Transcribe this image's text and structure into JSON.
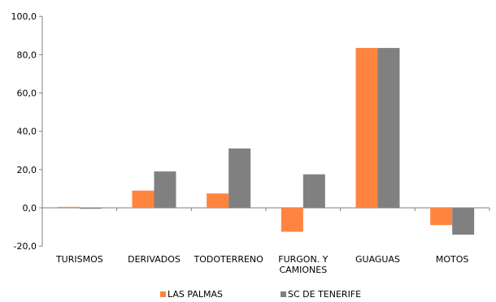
{
  "chart_data": {
    "type": "bar",
    "categories": [
      [
        "TURISMOS"
      ],
      [
        "DERIVADOS"
      ],
      [
        "TODOTERRENO"
      ],
      [
        "FURGON. Y",
        "CAMIONES"
      ],
      [
        "GUAGUAS"
      ],
      [
        "MOTOS"
      ]
    ],
    "series": [
      {
        "name": "LAS PALMAS",
        "color": "#ff8440",
        "values": [
          0.5,
          9.0,
          7.5,
          -12.5,
          83.5,
          -9.0
        ]
      },
      {
        "name": "SC DE TENERIFE",
        "color": "#808080",
        "values": [
          -0.5,
          19.0,
          31.0,
          17.5,
          83.5,
          -14.0
        ]
      }
    ],
    "ylim": [
      -20,
      100
    ],
    "yticks": [
      "-20,0",
      "0,0",
      "20,0",
      "40,0",
      "60,0",
      "80,0",
      "100,0"
    ],
    "grid": false,
    "legend_position": "bottom"
  }
}
